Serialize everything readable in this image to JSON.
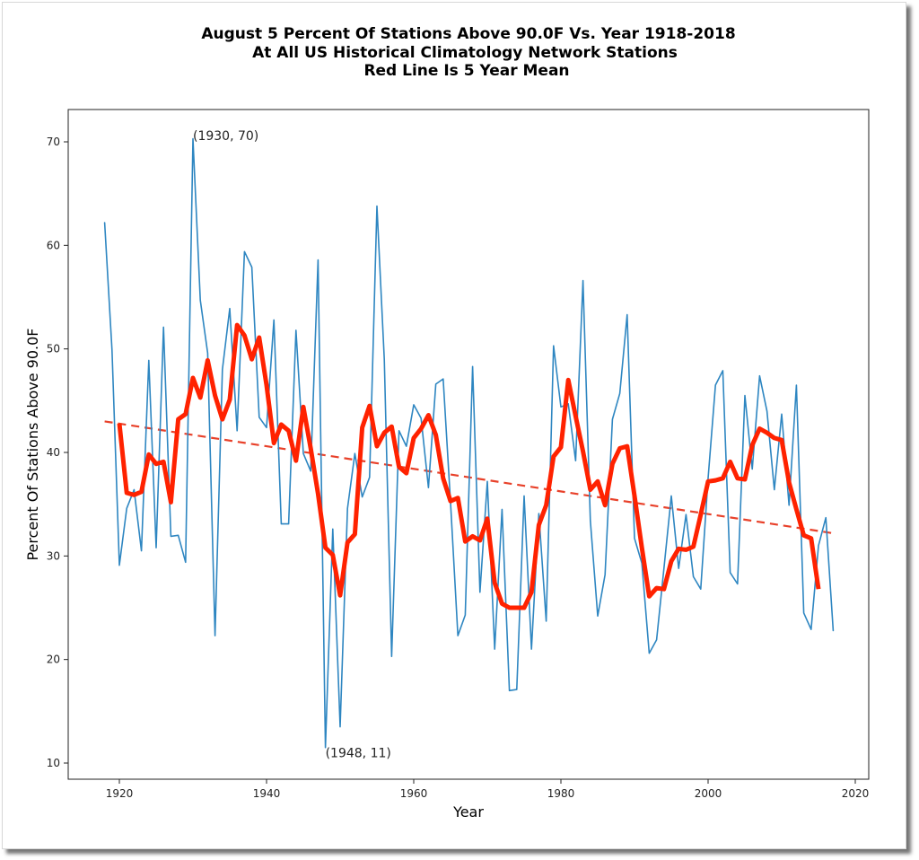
{
  "chart_data": {
    "type": "line",
    "title": [
      "August 5 Percent Of Stations Above 90.0F Vs. Year 1918-2018",
      "At All US Historical Climatology Network Stations",
      "Red Line Is 5 Year Mean"
    ],
    "xlabel": "Year",
    "ylabel": "Percent Of Stations Above 90.0F",
    "xlim": [
      1913,
      2022
    ],
    "ylim": [
      8.2,
      73.2
    ],
    "xticks": [
      1920,
      1940,
      1960,
      1980,
      2000,
      2020
    ],
    "yticks": [
      10,
      20,
      30,
      40,
      50,
      60,
      70
    ],
    "grid": false,
    "legend": "none",
    "series": [
      {
        "name": "Percent above 90F",
        "color": "#2e86c1",
        "style": "solid",
        "x": [
          1918,
          1919,
          1920,
          1921,
          1922,
          1923,
          1924,
          1925,
          1926,
          1927,
          1928,
          1929,
          1930,
          1931,
          1932,
          1933,
          1934,
          1935,
          1936,
          1937,
          1938,
          1939,
          1940,
          1941,
          1942,
          1943,
          1944,
          1945,
          1946,
          1947,
          1948,
          1949,
          1950,
          1951,
          1952,
          1953,
          1954,
          1955,
          1956,
          1957,
          1958,
          1959,
          1960,
          1961,
          1962,
          1963,
          1964,
          1965,
          1966,
          1967,
          1968,
          1969,
          1970,
          1971,
          1972,
          1973,
          1974,
          1975,
          1976,
          1977,
          1978,
          1979,
          1980,
          1981,
          1982,
          1983,
          1984,
          1985,
          1986,
          1987,
          1988,
          1989,
          1990,
          1991,
          1992,
          1993,
          1994,
          1995,
          1996,
          1997,
          1998,
          1999,
          2000,
          2001,
          2002,
          2003,
          2004,
          2005,
          2006,
          2007,
          2008,
          2009,
          2010,
          2011,
          2012,
          2013,
          2014,
          2015,
          2016,
          2017
        ],
        "y": [
          62.2,
          49.9,
          29.1,
          34.6,
          36.4,
          30.5,
          48.9,
          30.8,
          52.1,
          31.9,
          32.0,
          29.4,
          70.3,
          54.7,
          49.6,
          22.3,
          48.0,
          53.9,
          42.1,
          59.4,
          57.9,
          43.4,
          42.4,
          52.8,
          33.1,
          33.1,
          51.8,
          39.9,
          38.2,
          58.6,
          11.5,
          32.6,
          13.5,
          34.6,
          39.9,
          35.7,
          37.6,
          63.8,
          49.0,
          20.3,
          42.1,
          40.6,
          44.6,
          43.3,
          36.6,
          46.6,
          47.1,
          35.2,
          22.3,
          24.3,
          48.3,
          26.5,
          37.2,
          21.0,
          34.5,
          17.0,
          17.1,
          35.8,
          21.0,
          34.1,
          23.7,
          50.3,
          44.4,
          44.7,
          39.2,
          56.6,
          33.4,
          24.2,
          28.2,
          43.2,
          45.7,
          53.3,
          31.7,
          29.3,
          20.6,
          21.9,
          28.8,
          35.8,
          28.8,
          34.0,
          28.0,
          26.8,
          37.5,
          46.5,
          47.9,
          28.4,
          27.3,
          45.5,
          38.4,
          47.4,
          44.0,
          36.4,
          43.7,
          34.9,
          46.5,
          24.5,
          22.9,
          31.0,
          33.7,
          22.8
        ]
      },
      {
        "name": "5 Year Mean",
        "color": "#ff2200",
        "style": "solid-thick",
        "x": [
          1920,
          1921,
          1922,
          1923,
          1924,
          1925,
          1926,
          1927,
          1928,
          1929,
          1930,
          1931,
          1932,
          1933,
          1934,
          1935,
          1936,
          1937,
          1938,
          1939,
          1940,
          1941,
          1942,
          1943,
          1944,
          1945,
          1946,
          1947,
          1948,
          1949,
          1950,
          1951,
          1952,
          1953,
          1954,
          1955,
          1956,
          1957,
          1958,
          1959,
          1960,
          1961,
          1962,
          1963,
          1964,
          1965,
          1966,
          1967,
          1968,
          1969,
          1970,
          1971,
          1972,
          1973,
          1974,
          1975,
          1976,
          1977,
          1978,
          1979,
          1980,
          1981,
          1982,
          1983,
          1984,
          1985,
          1986,
          1987,
          1988,
          1989,
          1990,
          1991,
          1992,
          1993,
          1994,
          1995,
          1996,
          1997,
          1998,
          1999,
          2000,
          2001,
          2002,
          2003,
          2004,
          2005,
          2006,
          2007,
          2008,
          2009,
          2010,
          2011,
          2012,
          2013,
          2014,
          2015
        ],
        "y": [
          42.8,
          36.1,
          35.9,
          36.2,
          39.8,
          38.9,
          39.1,
          35.2,
          43.2,
          43.7,
          47.2,
          45.3,
          48.9,
          45.5,
          43.2,
          45.1,
          52.3,
          51.3,
          49.0,
          51.1,
          46.5,
          40.9,
          42.7,
          42.1,
          39.2,
          44.4,
          40.4,
          36.0,
          30.8,
          30.1,
          26.2,
          31.3,
          32.1,
          42.4,
          44.5,
          40.6,
          41.9,
          42.5,
          38.6,
          38.0,
          41.4,
          42.3,
          43.6,
          41.7,
          37.5,
          35.3,
          35.6,
          31.4,
          31.9,
          31.5,
          33.6,
          27.4,
          25.4,
          25.0,
          25.0,
          25.0,
          26.5,
          33.0,
          34.9,
          39.6,
          40.5,
          47.0,
          43.5,
          40.1,
          36.4,
          37.2,
          34.9,
          38.9,
          40.4,
          40.6,
          35.8,
          30.8,
          26.1,
          26.9,
          26.8,
          29.5,
          30.7,
          30.6,
          30.9,
          34.0,
          37.2,
          37.3,
          37.5,
          39.1,
          37.5,
          37.4,
          40.7,
          42.3,
          41.9,
          41.4,
          41.2,
          37.1,
          34.5,
          32.0,
          31.7,
          26.8
        ]
      },
      {
        "name": "Linear trend",
        "color": "#e8412a",
        "style": "dashed",
        "x": [
          1918,
          2017
        ],
        "y": [
          43.0,
          32.2
        ]
      }
    ],
    "annotations": [
      {
        "text": "(1930, 70)",
        "x": 1930,
        "y": 70
      },
      {
        "text": "(1948, 11)",
        "x": 1948,
        "y": 11
      }
    ]
  }
}
